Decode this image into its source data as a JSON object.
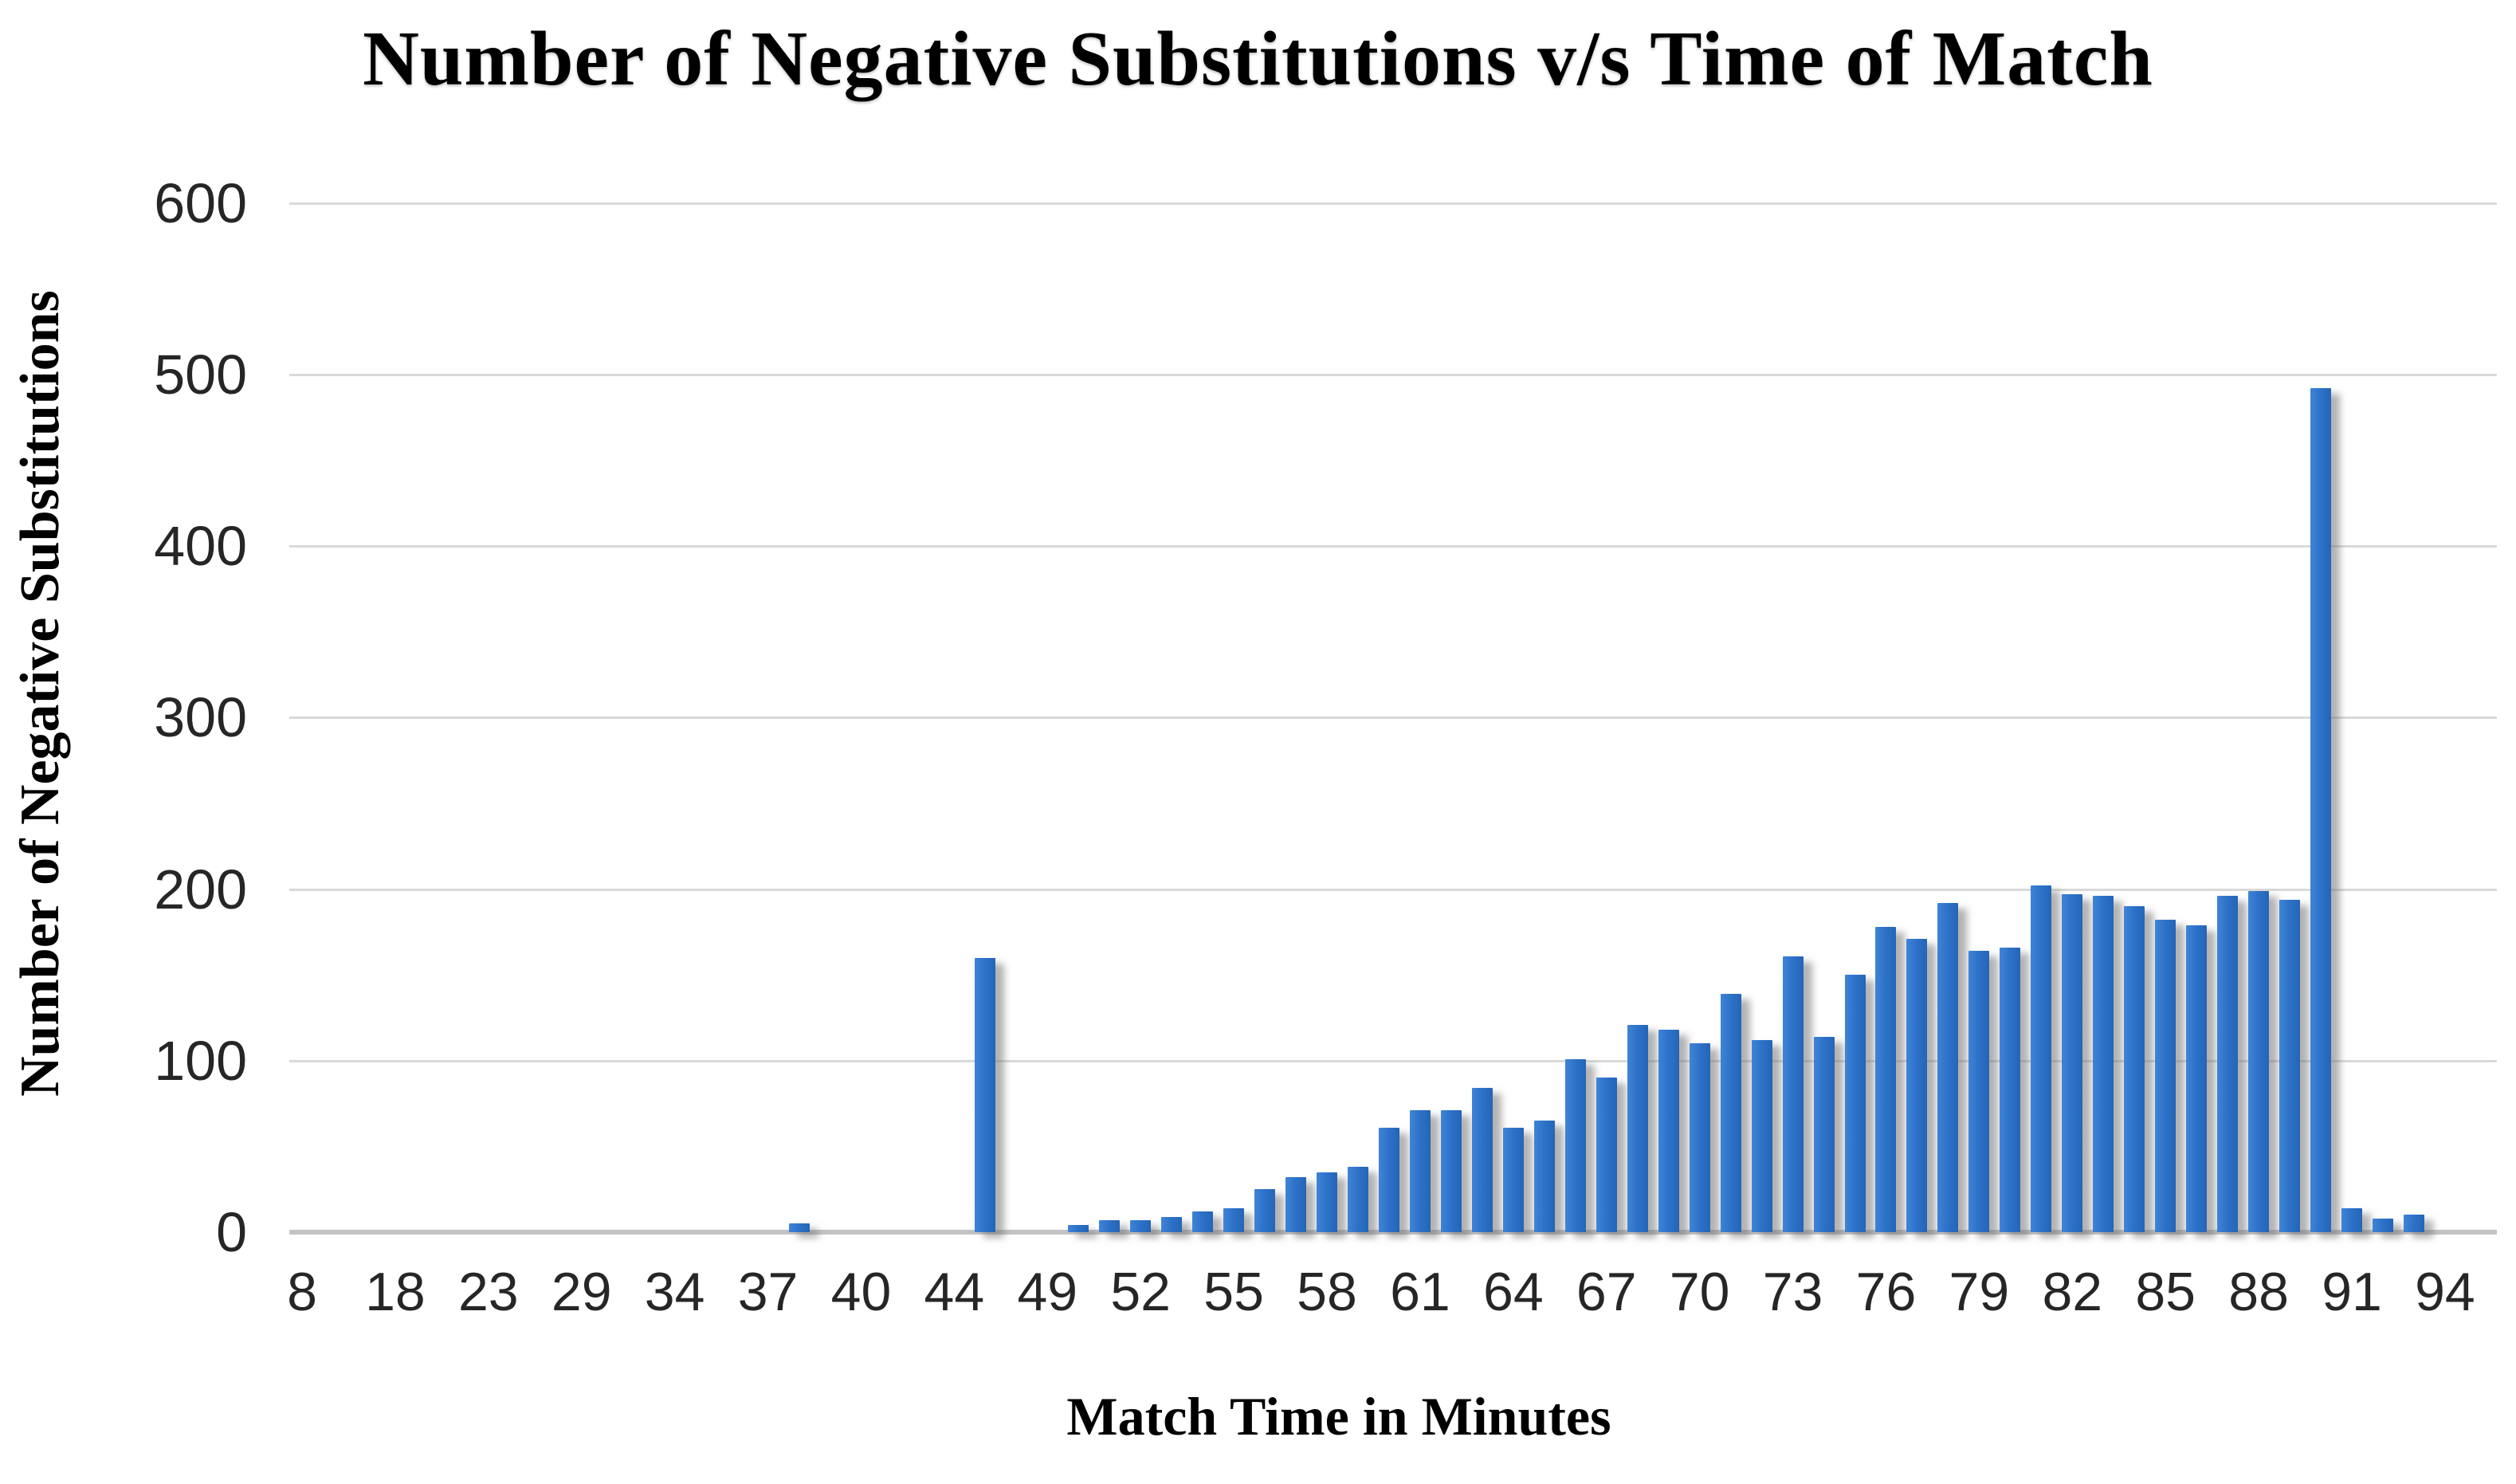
{
  "chart_data": {
    "type": "bar",
    "title": "Number of Negative Substitutions v/s Time of Match",
    "xlabel": "Match Time in Minutes",
    "ylabel": "Number of Negative Substitutions",
    "ylim": [
      0,
      600
    ],
    "yticks": [
      0,
      100,
      200,
      300,
      400,
      500,
      600
    ],
    "grid": "horizontal",
    "legend": "none",
    "x_tick_labels": [
      "8",
      "18",
      "23",
      "29",
      "34",
      "37",
      "40",
      "44",
      "49",
      "52",
      "55",
      "58",
      "61",
      "64",
      "67",
      "70",
      "73",
      "76",
      "79",
      "82",
      "85",
      "88",
      "91",
      "94"
    ],
    "label_every_n_bars": 3,
    "bar_color": "#2e73c9",
    "gridline_color": "#d9d9d9",
    "axis_line_color": "#c3c3c3",
    "tick_label_color": "#262626",
    "bars": [
      {
        "label": "8",
        "value": 0
      },
      {
        "label": "",
        "value": 0
      },
      {
        "label": "",
        "value": 0
      },
      {
        "label": "18",
        "value": 0
      },
      {
        "label": "",
        "value": 0
      },
      {
        "label": "",
        "value": 0
      },
      {
        "label": "23",
        "value": 0
      },
      {
        "label": "",
        "value": 0
      },
      {
        "label": "",
        "value": 0
      },
      {
        "label": "29",
        "value": 0
      },
      {
        "label": "",
        "value": 0
      },
      {
        "label": "",
        "value": 0
      },
      {
        "label": "34",
        "value": 0
      },
      {
        "label": "",
        "value": 0
      },
      {
        "label": "",
        "value": 0
      },
      {
        "label": "37",
        "value": 0
      },
      {
        "label": "",
        "value": 5
      },
      {
        "label": "",
        "value": 0
      },
      {
        "label": "40",
        "value": 0
      },
      {
        "label": "",
        "value": 0
      },
      {
        "label": "",
        "value": 0
      },
      {
        "label": "44",
        "value": 0
      },
      {
        "label": "",
        "value": 160
      },
      {
        "label": "",
        "value": 0
      },
      {
        "label": "49",
        "value": 0
      },
      {
        "label": "",
        "value": 4
      },
      {
        "label": "",
        "value": 7
      },
      {
        "label": "52",
        "value": 7
      },
      {
        "label": "",
        "value": 9
      },
      {
        "label": "",
        "value": 12
      },
      {
        "label": "55",
        "value": 14
      },
      {
        "label": "",
        "value": 25
      },
      {
        "label": "",
        "value": 32
      },
      {
        "label": "58",
        "value": 35
      },
      {
        "label": "",
        "value": 38
      },
      {
        "label": "",
        "value": 61
      },
      {
        "label": "61",
        "value": 71
      },
      {
        "label": "",
        "value": 71
      },
      {
        "label": "",
        "value": 84
      },
      {
        "label": "64",
        "value": 61
      },
      {
        "label": "",
        "value": 65
      },
      {
        "label": "",
        "value": 101
      },
      {
        "label": "67",
        "value": 90
      },
      {
        "label": "",
        "value": 121
      },
      {
        "label": "",
        "value": 118
      },
      {
        "label": "70",
        "value": 110
      },
      {
        "label": "",
        "value": 139
      },
      {
        "label": "",
        "value": 112
      },
      {
        "label": "73",
        "value": 161
      },
      {
        "label": "",
        "value": 114
      },
      {
        "label": "",
        "value": 150
      },
      {
        "label": "76",
        "value": 178
      },
      {
        "label": "",
        "value": 171
      },
      {
        "label": "",
        "value": 192
      },
      {
        "label": "79",
        "value": 164
      },
      {
        "label": "",
        "value": 166
      },
      {
        "label": "",
        "value": 202
      },
      {
        "label": "82",
        "value": 197
      },
      {
        "label": "",
        "value": 196
      },
      {
        "label": "",
        "value": 190
      },
      {
        "label": "85",
        "value": 182
      },
      {
        "label": "",
        "value": 179
      },
      {
        "label": "",
        "value": 196
      },
      {
        "label": "88",
        "value": 199
      },
      {
        "label": "",
        "value": 194
      },
      {
        "label": "",
        "value": 492
      },
      {
        "label": "91",
        "value": 14
      },
      {
        "label": "",
        "value": 8
      },
      {
        "label": "",
        "value": 10
      },
      {
        "label": "94",
        "value": 0
      }
    ]
  }
}
